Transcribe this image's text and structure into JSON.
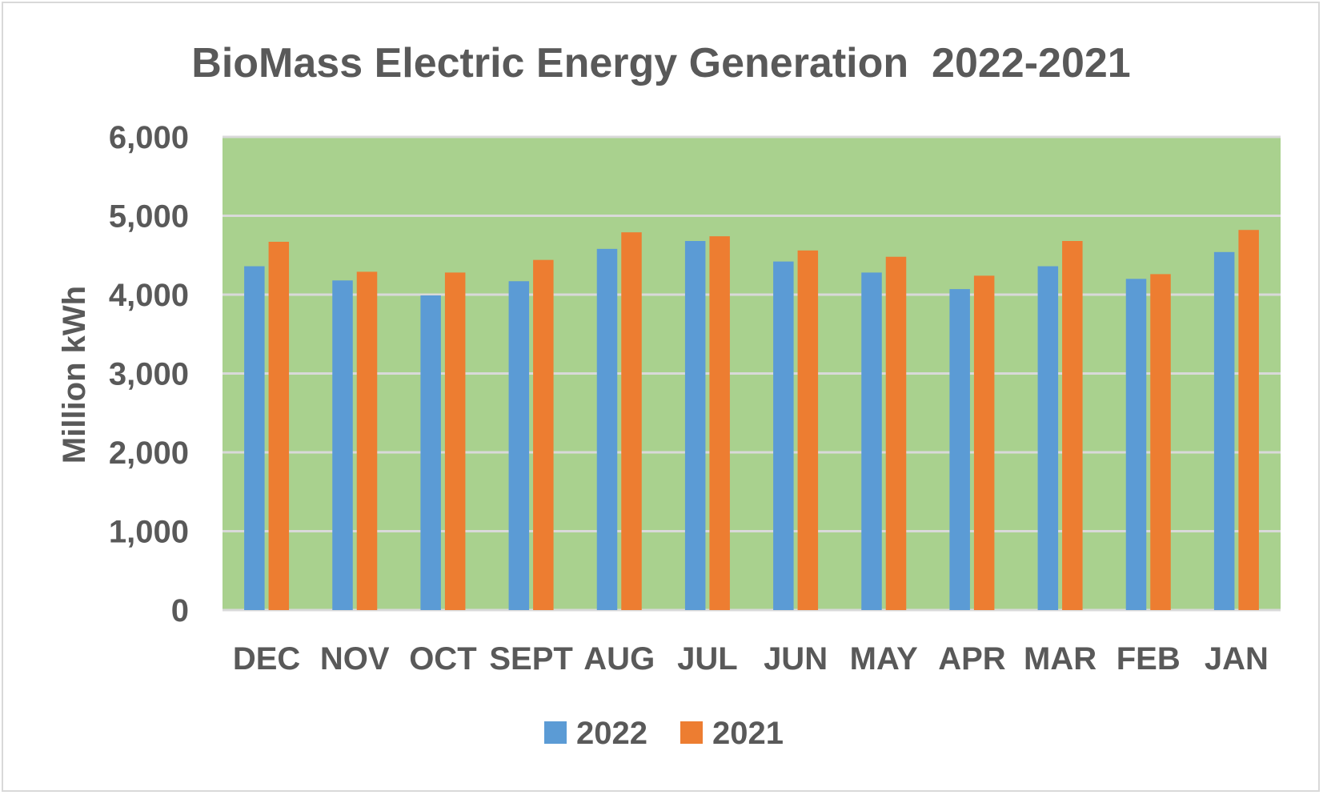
{
  "chart_data": {
    "type": "bar",
    "title": "BioMass Electric Energy Generation  2022-2021",
    "xlabel": "",
    "ylabel": "Million kWh",
    "ylim": [
      0,
      6000
    ],
    "yticks": [
      0,
      1000,
      2000,
      3000,
      4000,
      5000,
      6000
    ],
    "ytick_labels": [
      "0",
      "1,000",
      "2,000",
      "3,000",
      "4,000",
      "5,000",
      "6,000"
    ],
    "categories": [
      "DEC",
      "NOV",
      "OCT",
      "SEPT",
      "AUG",
      "JUL",
      "JUN",
      "MAY",
      "APR",
      "MAR",
      "FEB",
      "JAN"
    ],
    "series": [
      {
        "name": "2022",
        "color": "#5b9bd5",
        "values": [
          4360,
          4180,
          3990,
          4170,
          4580,
          4680,
          4420,
          4280,
          4070,
          4360,
          4200,
          4540
        ]
      },
      {
        "name": "2021",
        "color": "#ed7d31",
        "values": [
          4670,
          4290,
          4280,
          4440,
          4790,
          4740,
          4560,
          4480,
          4240,
          4680,
          4260,
          4820
        ]
      }
    ],
    "plot_background": "#a9d18e",
    "grid": true,
    "gridline_color": "#d9d9d9",
    "legend_position": "bottom"
  }
}
